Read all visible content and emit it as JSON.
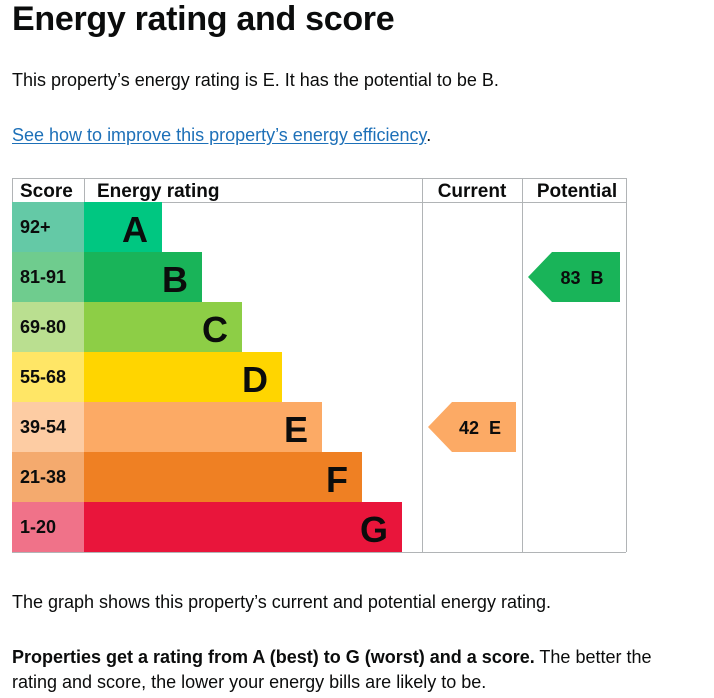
{
  "page": {
    "title": "Energy rating and score",
    "intro": "This property’s energy rating is E. It has the potential to be B.",
    "improve_link": "See how to improve this property’s energy efficiency",
    "improve_link_suffix": ".",
    "graph_note": "The graph shows this property’s current and potential energy rating.",
    "rating_note_bold": "Properties get a rating from A (best) to G (worst) and a score.",
    "rating_note_rest": " The better the rating and score, the lower your energy bills are likely to be."
  },
  "chart_data": {
    "type": "bar",
    "columns": [
      "Score",
      "Energy rating",
      "Current",
      "Potential"
    ],
    "bands": [
      {
        "letter": "A",
        "range": "92+",
        "color": "#00c781",
        "score_color": "#64c9a6"
      },
      {
        "letter": "B",
        "range": "81-91",
        "color": "#19b459",
        "score_color": "#6fcc8e"
      },
      {
        "letter": "C",
        "range": "69-80",
        "color": "#8dce46",
        "score_color": "#badf90"
      },
      {
        "letter": "D",
        "range": "55-68",
        "color": "#ffd500",
        "score_color": "#ffe666"
      },
      {
        "letter": "E",
        "range": "39-54",
        "color": "#fcaa65",
        "score_color": "#fdcca3"
      },
      {
        "letter": "F",
        "range": "21-38",
        "color": "#ef8023",
        "score_color": "#f4aa6e"
      },
      {
        "letter": "G",
        "range": "1-20",
        "color": "#e9153b",
        "score_color": "#f07289"
      }
    ],
    "current": {
      "score": 42,
      "letter": "E",
      "label": "42 E",
      "color": "#fcaa65"
    },
    "potential": {
      "score": 83,
      "letter": "B",
      "label": "83 B",
      "color": "#19b459"
    },
    "grid_color": "#b1b4b6"
  }
}
